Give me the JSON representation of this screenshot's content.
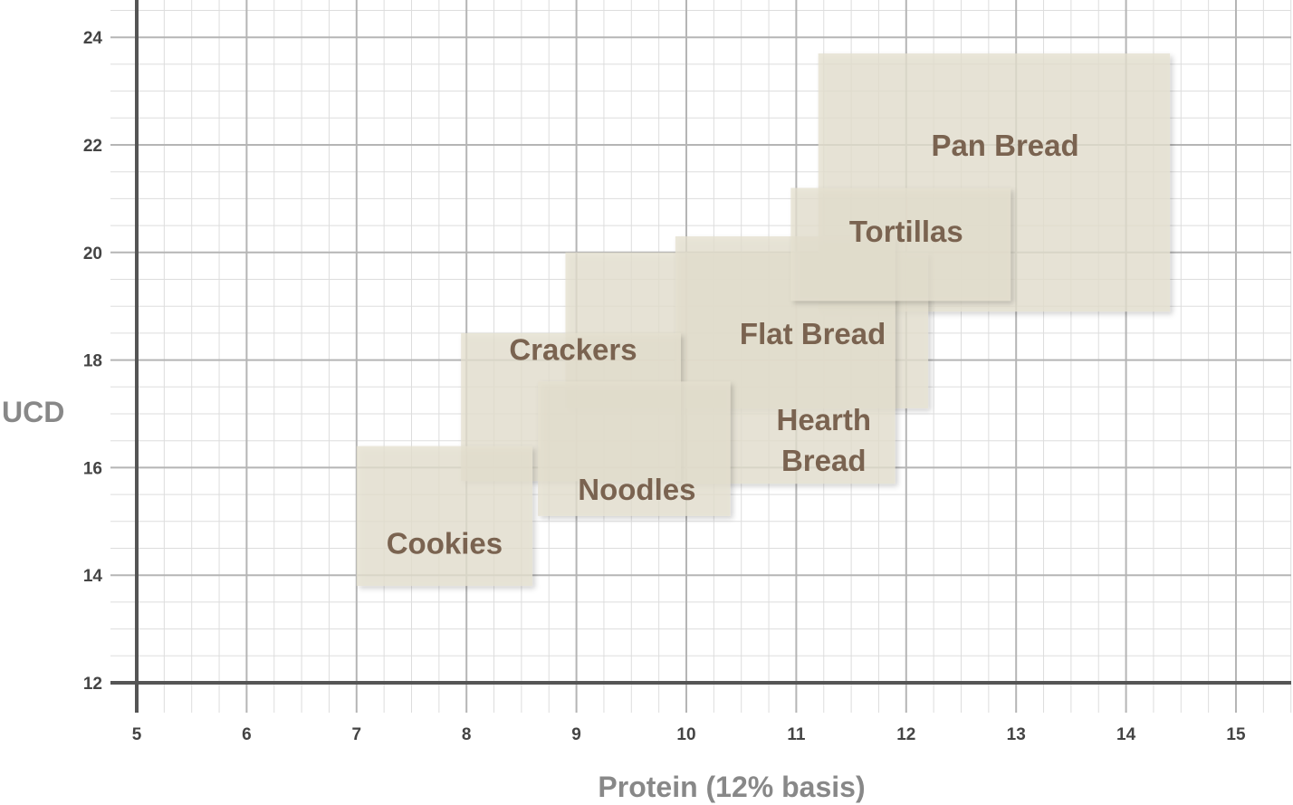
{
  "chart_data": {
    "type": "range-box",
    "xlabel": "Protein (12% basis)",
    "ylabel": "UCD",
    "xlim": [
      5,
      15.5
    ],
    "ylim": [
      12,
      24.5
    ],
    "x_ticks": [
      5,
      6,
      7,
      8,
      9,
      10,
      11,
      12,
      13,
      14,
      15
    ],
    "y_ticks": [
      12,
      14,
      16,
      18,
      20,
      22,
      24
    ],
    "grid": "major and minor",
    "regions": [
      {
        "name": "Pan Bread",
        "x": [
          11.2,
          14.4
        ],
        "y": [
          18.9,
          23.7
        ],
        "label_at": [
          12.9,
          21.8
        ],
        "label_lines": [
          "Pan Bread"
        ]
      },
      {
        "name": "Flat Bread",
        "x": [
          8.9,
          12.2
        ],
        "y": [
          17.1,
          20.0
        ],
        "label_at": [
          11.15,
          18.3
        ],
        "label_lines": [
          "Flat Bread"
        ]
      },
      {
        "name": "Hearth Bread",
        "x": [
          9.9,
          11.9
        ],
        "y": [
          15.7,
          20.3
        ],
        "label_at": [
          11.25,
          16.7
        ],
        "label_lines": [
          "Hearth",
          "Bread"
        ]
      },
      {
        "name": "Crackers",
        "x": [
          7.95,
          9.95
        ],
        "y": [
          15.75,
          18.5
        ],
        "label_at": [
          8.97,
          18.0
        ],
        "label_lines": [
          "Crackers"
        ]
      },
      {
        "name": "Noodles",
        "x": [
          8.65,
          10.4
        ],
        "y": [
          15.1,
          17.6
        ],
        "label_at": [
          9.55,
          15.4
        ],
        "label_lines": [
          "Noodles"
        ]
      },
      {
        "name": "Cookies",
        "x": [
          7.0,
          8.6
        ],
        "y": [
          13.8,
          16.4
        ],
        "label_at": [
          7.8,
          14.4
        ],
        "label_lines": [
          "Cookies"
        ]
      },
      {
        "name": "Tortillas",
        "x": [
          10.95,
          12.95
        ],
        "y": [
          19.1,
          21.2
        ],
        "label_at": [
          12.0,
          20.2
        ],
        "label_lines": [
          "Tortillas"
        ]
      }
    ]
  },
  "colors": {
    "box_fill": "#e6e0cf",
    "label": "#7a6350",
    "axis": "#555555",
    "grid_major": "#b5b5b5",
    "grid_minor": "#dddddd"
  }
}
